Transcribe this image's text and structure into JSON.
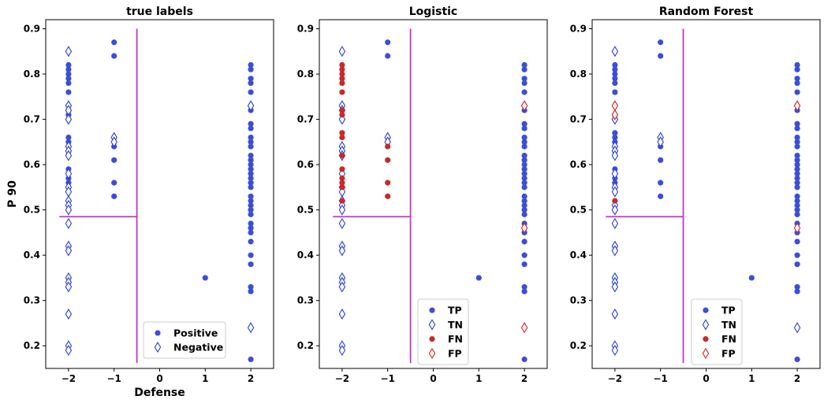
{
  "colors": {
    "positive": "#3a4fd6",
    "tp": "#3a4fd6",
    "tn_edge": "#2b3fd0",
    "fn": "#c62a2a",
    "fp_edge": "#d62222",
    "boundary": "#c436c8"
  },
  "chart_data": [
    {
      "type": "scatter",
      "title": "true labels",
      "xlabel": "Defense",
      "ylabel": "P 90",
      "xlim": [
        -2.5,
        2.5
      ],
      "ylim": [
        0.15,
        0.92
      ],
      "xticks": [
        "−2",
        "−1",
        "0",
        "1",
        "2"
      ],
      "yticks": [
        "0.2",
        "0.3",
        "0.4",
        "0.5",
        "0.6",
        "0.7",
        "0.8",
        "0.9"
      ],
      "boundary": {
        "vertical_x": -0.5,
        "vertical_y": [
          0.162,
          0.9
        ],
        "horizontal_y": 0.485,
        "horizontal_x": [
          -2.2,
          -0.5
        ]
      },
      "legend": {
        "position": "lower-right",
        "entries": [
          "Positive",
          "Negative"
        ]
      },
      "series": [
        {
          "name": "Positive",
          "marker": "circle",
          "points": [
            [
              -2,
              0.82
            ],
            [
              -2,
              0.81
            ],
            [
              -2,
              0.8
            ],
            [
              -2,
              0.79
            ],
            [
              -2,
              0.78
            ],
            [
              -2,
              0.76
            ],
            [
              -2,
              0.72
            ],
            [
              -2,
              0.71
            ],
            [
              -2,
              0.66
            ],
            [
              -2,
              0.65
            ],
            [
              -2,
              0.62
            ],
            [
              -2,
              0.59
            ],
            [
              -2,
              0.57
            ],
            [
              -2,
              0.56
            ],
            [
              -2,
              0.55
            ],
            [
              -2,
              0.52
            ],
            [
              -1,
              0.87
            ],
            [
              -1,
              0.84
            ],
            [
              -1,
              0.64
            ],
            [
              -1,
              0.61
            ],
            [
              -1,
              0.56
            ],
            [
              -1,
              0.53
            ],
            [
              1,
              0.35
            ],
            [
              2,
              0.82
            ],
            [
              2,
              0.81
            ],
            [
              2,
              0.79
            ],
            [
              2,
              0.78
            ],
            [
              2,
              0.76
            ],
            [
              2,
              0.72
            ],
            [
              2,
              0.69
            ],
            [
              2,
              0.68
            ],
            [
              2,
              0.66
            ],
            [
              2,
              0.65
            ],
            [
              2,
              0.64
            ],
            [
              2,
              0.62
            ],
            [
              2,
              0.61
            ],
            [
              2,
              0.6
            ],
            [
              2,
              0.59
            ],
            [
              2,
              0.58
            ],
            [
              2,
              0.57
            ],
            [
              2,
              0.56
            ],
            [
              2,
              0.55
            ],
            [
              2,
              0.53
            ],
            [
              2,
              0.52
            ],
            [
              2,
              0.51
            ],
            [
              2,
              0.5
            ],
            [
              2,
              0.49
            ],
            [
              2,
              0.47
            ],
            [
              2,
              0.46
            ],
            [
              2,
              0.45
            ],
            [
              2,
              0.43
            ],
            [
              2,
              0.4
            ],
            [
              2,
              0.38
            ],
            [
              2,
              0.33
            ],
            [
              2,
              0.32
            ],
            [
              2,
              0.17
            ]
          ]
        },
        {
          "name": "Negative",
          "marker": "diamond",
          "points": [
            [
              -2,
              0.85
            ],
            [
              -2,
              0.73
            ],
            [
              -2,
              0.72
            ],
            [
              -2,
              0.7
            ],
            [
              -2,
              0.64
            ],
            [
              -2,
              0.63
            ],
            [
              -2,
              0.62
            ],
            [
              -2,
              0.58
            ],
            [
              -2,
              0.55
            ],
            [
              -2,
              0.54
            ],
            [
              -2,
              0.52
            ],
            [
              -2,
              0.51
            ],
            [
              -2,
              0.5
            ],
            [
              -2,
              0.47
            ],
            [
              -2,
              0.42
            ],
            [
              -2,
              0.41
            ],
            [
              -2,
              0.35
            ],
            [
              -2,
              0.34
            ],
            [
              -2,
              0.33
            ],
            [
              -2,
              0.27
            ],
            [
              -2,
              0.2
            ],
            [
              -2,
              0.19
            ],
            [
              -1,
              0.66
            ],
            [
              -1,
              0.65
            ],
            [
              2,
              0.73
            ],
            [
              2,
              0.24
            ]
          ]
        }
      ]
    },
    {
      "type": "scatter",
      "title": "Logistic",
      "xlim": [
        -2.5,
        2.5
      ],
      "ylim": [
        0.15,
        0.92
      ],
      "xticks": [
        "−2",
        "−1",
        "0",
        "1",
        "2"
      ],
      "yticks": [
        "0.2",
        "0.3",
        "0.4",
        "0.5",
        "0.6",
        "0.7",
        "0.8",
        "0.9"
      ],
      "boundary": {
        "vertical_x": -0.5,
        "vertical_y": [
          0.162,
          0.9
        ],
        "horizontal_y": 0.485,
        "horizontal_x": [
          -2.2,
          -0.5
        ]
      },
      "legend": {
        "position": "lower-center",
        "entries": [
          "TP",
          "TN",
          "FN",
          "FP"
        ]
      },
      "series": [
        {
          "name": "TP",
          "marker": "circle",
          "points": [
            [
              -1,
              0.87
            ],
            [
              -1,
              0.84
            ],
            [
              1,
              0.35
            ],
            [
              2,
              0.82
            ],
            [
              2,
              0.81
            ],
            [
              2,
              0.79
            ],
            [
              2,
              0.78
            ],
            [
              2,
              0.76
            ],
            [
              2,
              0.72
            ],
            [
              2,
              0.69
            ],
            [
              2,
              0.68
            ],
            [
              2,
              0.66
            ],
            [
              2,
              0.65
            ],
            [
              2,
              0.64
            ],
            [
              2,
              0.62
            ],
            [
              2,
              0.61
            ],
            [
              2,
              0.6
            ],
            [
              2,
              0.59
            ],
            [
              2,
              0.58
            ],
            [
              2,
              0.57
            ],
            [
              2,
              0.56
            ],
            [
              2,
              0.55
            ],
            [
              2,
              0.53
            ],
            [
              2,
              0.52
            ],
            [
              2,
              0.51
            ],
            [
              2,
              0.5
            ],
            [
              2,
              0.49
            ],
            [
              2,
              0.47
            ],
            [
              2,
              0.46
            ],
            [
              2,
              0.45
            ],
            [
              2,
              0.43
            ],
            [
              2,
              0.4
            ],
            [
              2,
              0.38
            ],
            [
              2,
              0.33
            ],
            [
              2,
              0.32
            ],
            [
              2,
              0.17
            ]
          ]
        },
        {
          "name": "TN",
          "marker": "diamond",
          "points": [
            [
              -2,
              0.85
            ],
            [
              -2,
              0.73
            ],
            [
              -2,
              0.72
            ],
            [
              -2,
              0.7
            ],
            [
              -2,
              0.64
            ],
            [
              -2,
              0.63
            ],
            [
              -2,
              0.62
            ],
            [
              -2,
              0.58
            ],
            [
              -2,
              0.55
            ],
            [
              -2,
              0.54
            ],
            [
              -2,
              0.52
            ],
            [
              -2,
              0.51
            ],
            [
              -2,
              0.5
            ],
            [
              -2,
              0.47
            ],
            [
              -2,
              0.42
            ],
            [
              -2,
              0.41
            ],
            [
              -2,
              0.35
            ],
            [
              -2,
              0.34
            ],
            [
              -2,
              0.33
            ],
            [
              -2,
              0.27
            ],
            [
              -2,
              0.2
            ],
            [
              -2,
              0.19
            ],
            [
              -1,
              0.66
            ],
            [
              -1,
              0.65
            ]
          ]
        },
        {
          "name": "FN",
          "marker": "circle",
          "points": [
            [
              -2,
              0.82
            ],
            [
              -2,
              0.81
            ],
            [
              -2,
              0.8
            ],
            [
              -2,
              0.79
            ],
            [
              -2,
              0.78
            ],
            [
              -2,
              0.76
            ],
            [
              -2,
              0.72
            ],
            [
              -2,
              0.71
            ],
            [
              -2,
              0.67
            ],
            [
              -2,
              0.66
            ],
            [
              -2,
              0.62
            ],
            [
              -2,
              0.59
            ],
            [
              -2,
              0.57
            ],
            [
              -2,
              0.56
            ],
            [
              -2,
              0.55
            ],
            [
              -2,
              0.52
            ],
            [
              -1,
              0.64
            ],
            [
              -1,
              0.61
            ],
            [
              -1,
              0.56
            ],
            [
              -1,
              0.53
            ]
          ]
        },
        {
          "name": "FP",
          "marker": "diamond",
          "points": [
            [
              2,
              0.73
            ],
            [
              2,
              0.46
            ],
            [
              2,
              0.24
            ]
          ]
        }
      ]
    },
    {
      "type": "scatter",
      "title": "Random Forest",
      "xlim": [
        -2.5,
        2.5
      ],
      "ylim": [
        0.15,
        0.92
      ],
      "xticks": [
        "−2",
        "−1",
        "0",
        "1",
        "2"
      ],
      "yticks": [
        "0.2",
        "0.3",
        "0.4",
        "0.5",
        "0.6",
        "0.7",
        "0.8",
        "0.9"
      ],
      "boundary": {
        "vertical_x": -0.5,
        "vertical_y": [
          0.162,
          0.9
        ],
        "horizontal_y": 0.485,
        "horizontal_x": [
          -2.2,
          -0.5
        ]
      },
      "legend": {
        "position": "lower-center",
        "entries": [
          "TP",
          "TN",
          "FN",
          "FP"
        ]
      },
      "series": [
        {
          "name": "TP",
          "marker": "circle",
          "points": [
            [
              -2,
              0.82
            ],
            [
              -2,
              0.81
            ],
            [
              -2,
              0.8
            ],
            [
              -2,
              0.79
            ],
            [
              -2,
              0.78
            ],
            [
              -2,
              0.76
            ],
            [
              -2,
              0.71
            ],
            [
              -2,
              0.67
            ],
            [
              -2,
              0.66
            ],
            [
              -2,
              0.65
            ],
            [
              -2,
              0.62
            ],
            [
              -2,
              0.59
            ],
            [
              -2,
              0.57
            ],
            [
              -2,
              0.56
            ],
            [
              -2,
              0.55
            ],
            [
              -1,
              0.87
            ],
            [
              -1,
              0.84
            ],
            [
              -1,
              0.64
            ],
            [
              -1,
              0.61
            ],
            [
              -1,
              0.56
            ],
            [
              -1,
              0.53
            ],
            [
              1,
              0.35
            ],
            [
              2,
              0.82
            ],
            [
              2,
              0.81
            ],
            [
              2,
              0.79
            ],
            [
              2,
              0.78
            ],
            [
              2,
              0.76
            ],
            [
              2,
              0.72
            ],
            [
              2,
              0.69
            ],
            [
              2,
              0.68
            ],
            [
              2,
              0.66
            ],
            [
              2,
              0.65
            ],
            [
              2,
              0.64
            ],
            [
              2,
              0.62
            ],
            [
              2,
              0.61
            ],
            [
              2,
              0.6
            ],
            [
              2,
              0.59
            ],
            [
              2,
              0.58
            ],
            [
              2,
              0.57
            ],
            [
              2,
              0.56
            ],
            [
              2,
              0.55
            ],
            [
              2,
              0.53
            ],
            [
              2,
              0.52
            ],
            [
              2,
              0.51
            ],
            [
              2,
              0.5
            ],
            [
              2,
              0.49
            ],
            [
              2,
              0.47
            ],
            [
              2,
              0.45
            ],
            [
              2,
              0.43
            ],
            [
              2,
              0.4
            ],
            [
              2,
              0.38
            ],
            [
              2,
              0.33
            ],
            [
              2,
              0.32
            ],
            [
              2,
              0.17
            ]
          ]
        },
        {
          "name": "TN",
          "marker": "diamond",
          "points": [
            [
              -2,
              0.85
            ],
            [
              -2,
              0.7
            ],
            [
              -2,
              0.64
            ],
            [
              -2,
              0.63
            ],
            [
              -2,
              0.62
            ],
            [
              -2,
              0.58
            ],
            [
              -2,
              0.55
            ],
            [
              -2,
              0.54
            ],
            [
              -2,
              0.51
            ],
            [
              -2,
              0.5
            ],
            [
              -2,
              0.47
            ],
            [
              -2,
              0.42
            ],
            [
              -2,
              0.41
            ],
            [
              -2,
              0.35
            ],
            [
              -2,
              0.34
            ],
            [
              -2,
              0.33
            ],
            [
              -2,
              0.27
            ],
            [
              -2,
              0.2
            ],
            [
              -2,
              0.19
            ],
            [
              -1,
              0.66
            ],
            [
              -1,
              0.65
            ],
            [
              2,
              0.24
            ]
          ]
        },
        {
          "name": "FN",
          "marker": "circle",
          "points": [
            [
              -2,
              0.52
            ]
          ]
        },
        {
          "name": "FP",
          "marker": "diamond",
          "points": [
            [
              -2,
              0.73
            ],
            [
              -2,
              0.71
            ],
            [
              2,
              0.73
            ],
            [
              2,
              0.46
            ]
          ]
        }
      ]
    }
  ]
}
